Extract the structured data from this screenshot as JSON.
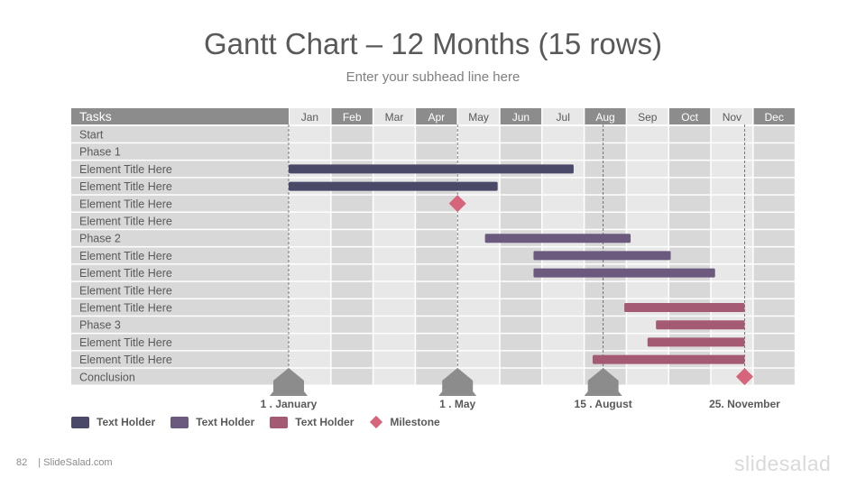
{
  "slide": {
    "title": "Gantt Chart – 12 Months (15 rows)",
    "subtitle": "Enter your subhead line here",
    "page_number": "82",
    "footer_text": "| SlideSalad.com",
    "logo_text": "slidesalad"
  },
  "colors": {
    "header_gray": "#8c8c8c",
    "row_light": "#e8e8e8",
    "row_dark": "#d8d8d8",
    "series_1": "#4a4a68",
    "series_2": "#6b5a7e",
    "series_3": "#a45a72",
    "milestone": "#d6647a",
    "marker": "#8c8c8c"
  },
  "chart_data": {
    "type": "gantt",
    "task_header": "Tasks",
    "months": [
      "Jan",
      "Feb",
      "Mar",
      "Apr",
      "May",
      "Jun",
      "Jul",
      "Aug",
      "Sep",
      "Oct",
      "Nov",
      "Dec"
    ],
    "header_dark_months": [
      1,
      3,
      5,
      7,
      9,
      11
    ],
    "tasks": [
      "Start",
      "Phase 1",
      "Element Title Here",
      "Element Title Here",
      "Element Title Here",
      "Element Title Here",
      "Phase 2",
      "Element Title Here",
      "Element Title Here",
      "Element Title Here",
      "Element Title Here",
      "Phase 3",
      "Element Title Here",
      "Element Title Here",
      "Conclusion"
    ],
    "bars": [
      {
        "row": 2,
        "series": 1,
        "start": 0.0,
        "end": 6.75
      },
      {
        "row": 3,
        "series": 1,
        "start": 0.0,
        "end": 4.95
      },
      {
        "row": 6,
        "series": 2,
        "start": 4.65,
        "end": 8.1
      },
      {
        "row": 7,
        "series": 2,
        "start": 5.8,
        "end": 9.05
      },
      {
        "row": 8,
        "series": 2,
        "start": 5.8,
        "end": 10.1
      },
      {
        "row": 10,
        "series": 3,
        "start": 7.95,
        "end": 10.8
      },
      {
        "row": 11,
        "series": 3,
        "start": 8.7,
        "end": 10.8
      },
      {
        "row": 12,
        "series": 3,
        "start": 8.5,
        "end": 10.8
      },
      {
        "row": 13,
        "series": 3,
        "start": 7.2,
        "end": 10.8
      }
    ],
    "milestones": [
      {
        "row": 4,
        "at": 4.0
      },
      {
        "row": 14,
        "at": 10.8
      }
    ],
    "markers": [
      {
        "label": "1 . January",
        "at": 0.0
      },
      {
        "label": "1 . May",
        "at": 4.0
      },
      {
        "label": "15 . August",
        "at": 7.45
      },
      {
        "label": "25. November",
        "at": 10.8
      }
    ],
    "legend": [
      {
        "label": "Text Holder",
        "series": 1
      },
      {
        "label": "Text Holder",
        "series": 2
      },
      {
        "label": "Text Holder",
        "series": 3
      },
      {
        "label": "Milestone",
        "series": "milestone"
      }
    ]
  }
}
